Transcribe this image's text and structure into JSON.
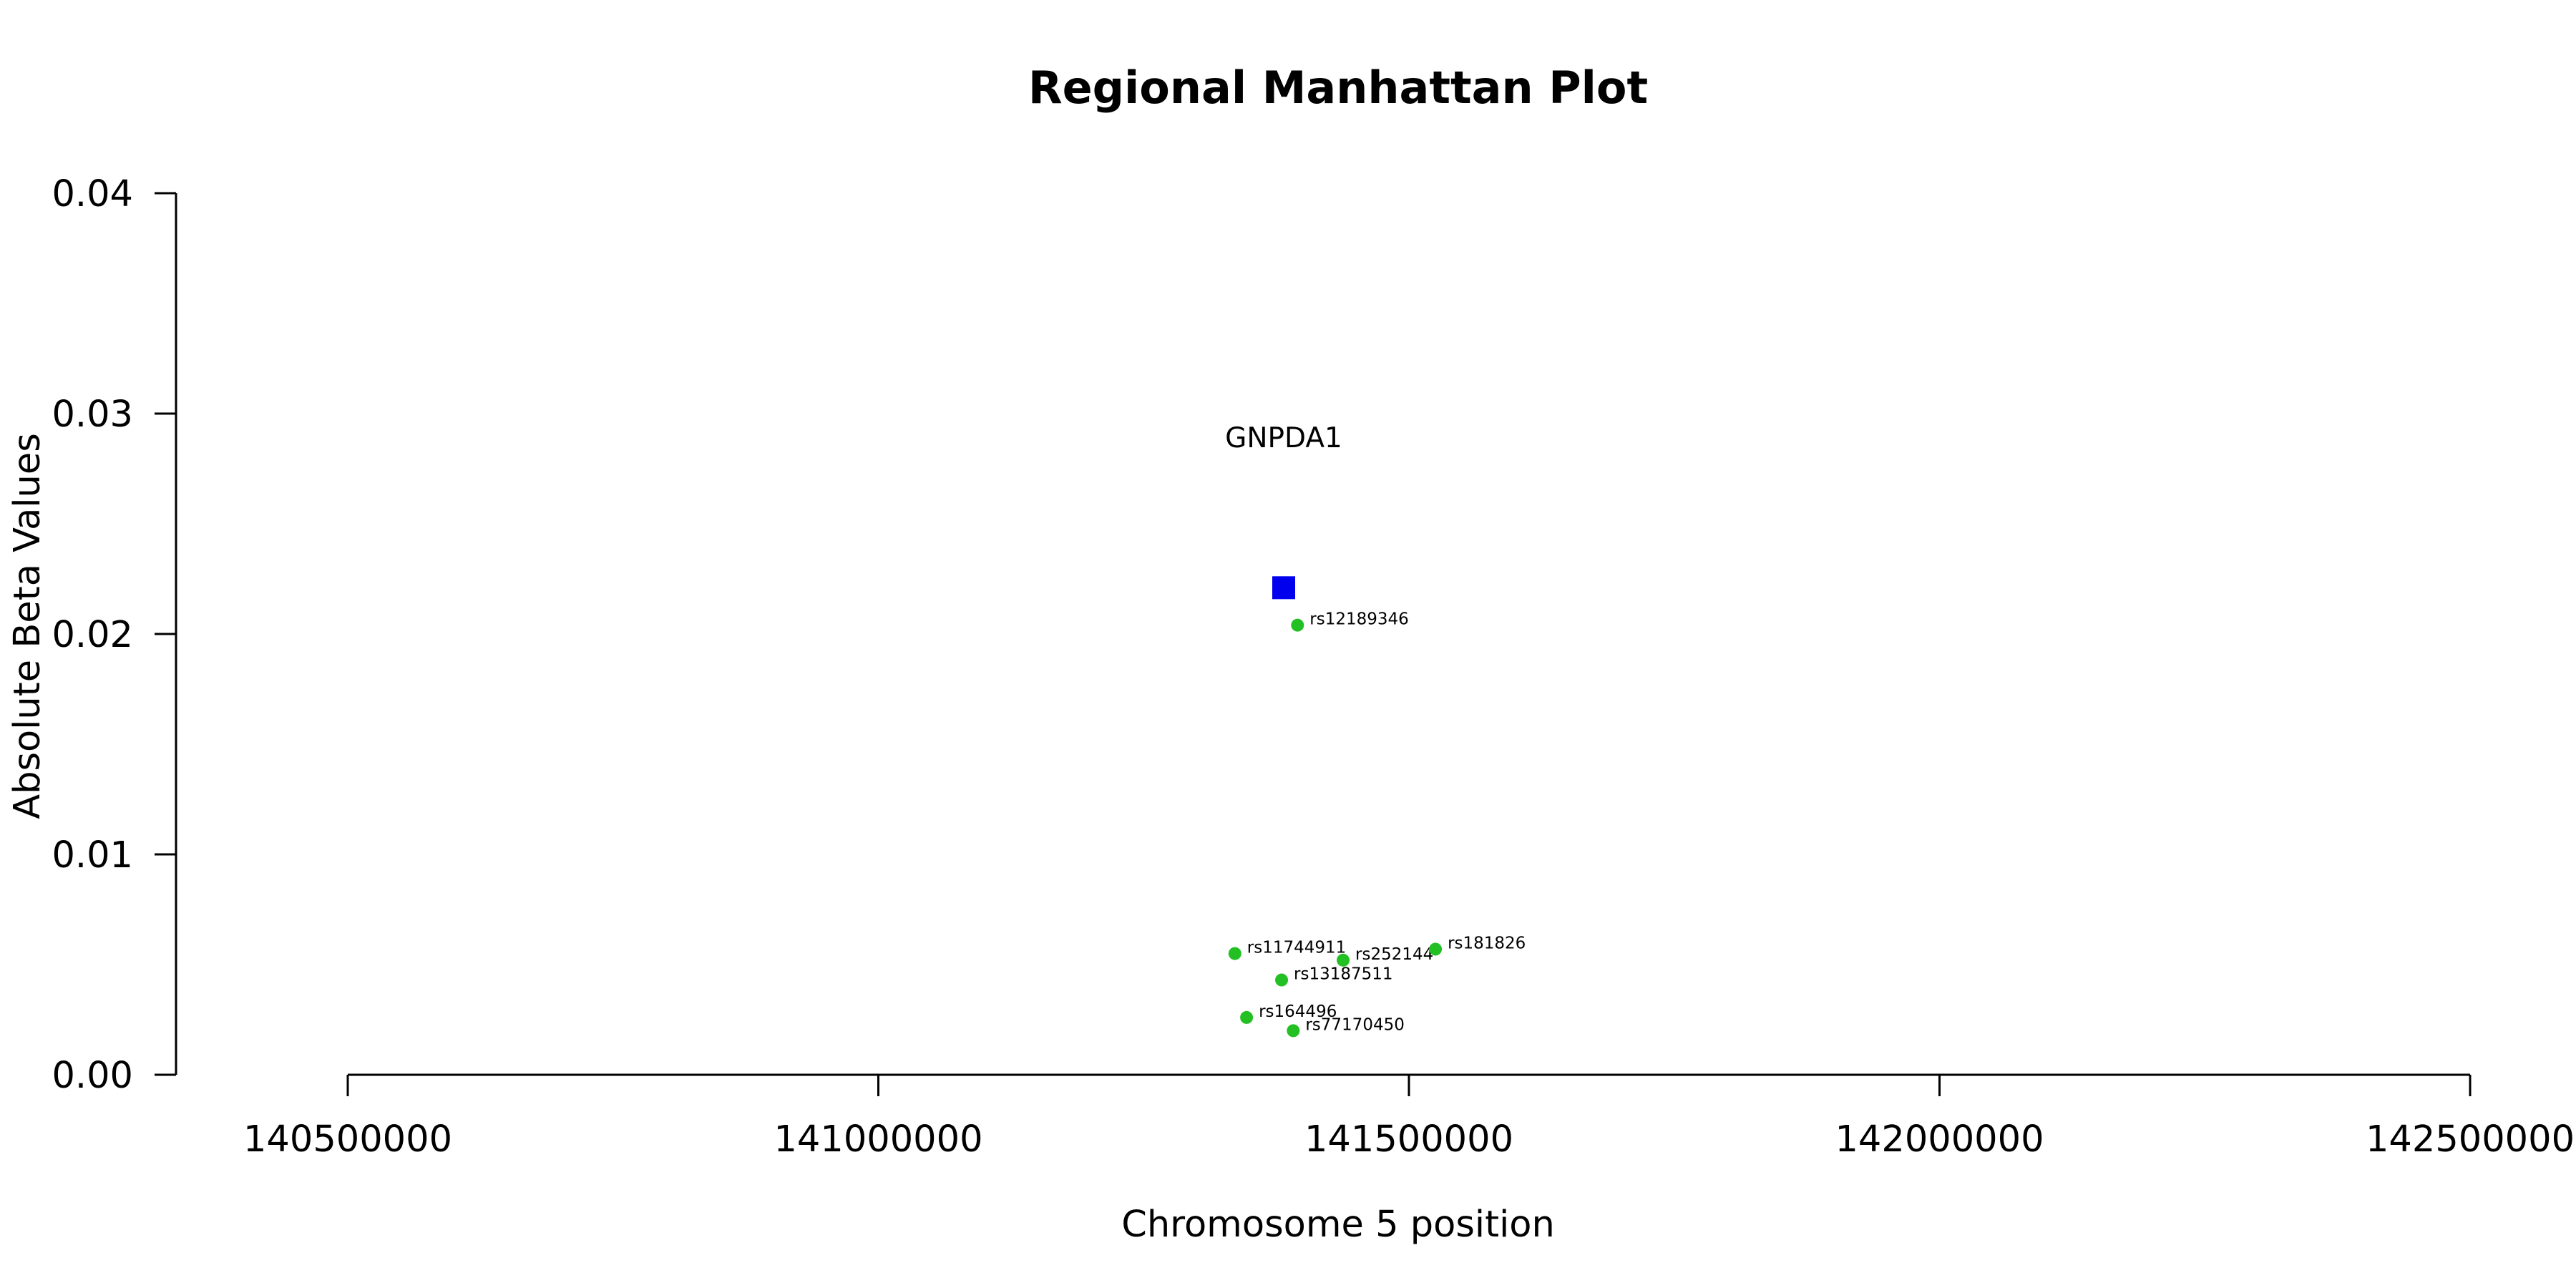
{
  "chart_data": {
    "type": "scatter",
    "title": "Regional Manhattan Plot",
    "xlabel": "Chromosome 5 position",
    "ylabel": "Absolute Beta Values",
    "xlim": [
      140340000,
      142500000
    ],
    "ylim": [
      0,
      0.04
    ],
    "x_ticks": [
      140500000,
      141000000,
      141500000,
      142000000,
      142500000
    ],
    "x_tick_labels": [
      "140500000",
      "141000000",
      "141500000",
      "142000000",
      "142500000"
    ],
    "y_ticks": [
      0.0,
      0.01,
      0.02,
      0.03,
      0.04
    ],
    "y_tick_labels": [
      "0.00",
      "0.01",
      "0.02",
      "0.03",
      "0.04"
    ],
    "grid": false,
    "colors": {
      "snp": "#22c022",
      "gene": "#0000ee",
      "axis": "#000000"
    },
    "gene": {
      "name": "GNPDA1",
      "x": 141382000,
      "y": 0.0221,
      "label_y": 0.0289,
      "marker": "square"
    },
    "points": [
      {
        "label": "rs12189346",
        "x": 141395000,
        "y": 0.0204
      },
      {
        "label": "rs11744911",
        "x": 141336000,
        "y": 0.0055
      },
      {
        "label": "rs252144",
        "x": 141438000,
        "y": 0.0052
      },
      {
        "label": "rs181826",
        "x": 141525000,
        "y": 0.0057
      },
      {
        "label": "rs13187511",
        "x": 141380000,
        "y": 0.0043
      },
      {
        "label": "rs164496",
        "x": 141347000,
        "y": 0.0026
      },
      {
        "label": "rs77170450",
        "x": 141391000,
        "y": 0.002
      }
    ]
  }
}
